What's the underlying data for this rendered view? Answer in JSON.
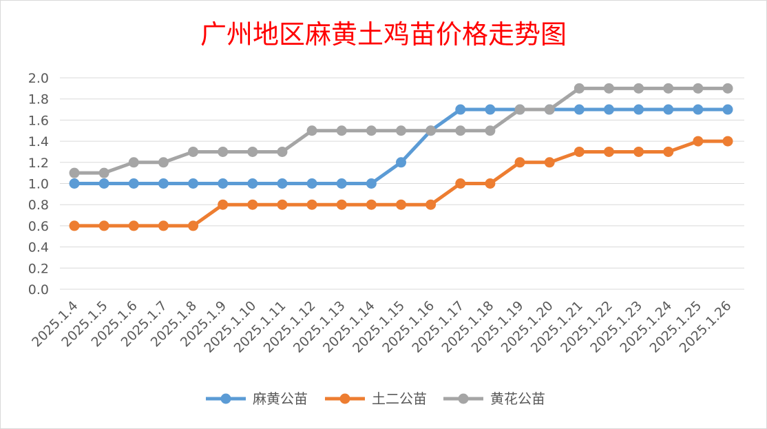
{
  "chart_data": {
    "type": "line",
    "title": "广州地区麻黄土鸡苗价格走势图",
    "xlabel": "",
    "ylabel": "",
    "ylim": [
      0,
      2.0
    ],
    "yticks": [
      "0.0",
      "0.2",
      "0.4",
      "0.6",
      "0.8",
      "1.0",
      "1.2",
      "1.4",
      "1.6",
      "1.8",
      "2.0"
    ],
    "grid": true,
    "legend_position": "bottom",
    "categories": [
      "2025.1.4",
      "2025.1.5",
      "2025.1.6",
      "2025.1.7",
      "2025.1.8",
      "2025.1.9",
      "2025.1.10",
      "2025.1.11",
      "2025.1.12",
      "2025.1.13",
      "2025.1.14",
      "2025.1.15",
      "2025.1.16",
      "2025.1.17",
      "2025.1.18",
      "2025.1.19",
      "2025.1.20",
      "2025.1.21",
      "2025.1.22",
      "2025.1.23",
      "2025.1.24",
      "2025.1.25",
      "2025.1.26"
    ],
    "series": [
      {
        "name": "麻黄公苗",
        "color": "#5b9bd5",
        "values": [
          1.0,
          1.0,
          1.0,
          1.0,
          1.0,
          1.0,
          1.0,
          1.0,
          1.0,
          1.0,
          1.0,
          1.2,
          1.5,
          1.7,
          1.7,
          1.7,
          1.7,
          1.7,
          1.7,
          1.7,
          1.7,
          1.7,
          1.7
        ]
      },
      {
        "name": "土二公苗",
        "color": "#ed7d31",
        "values": [
          0.6,
          0.6,
          0.6,
          0.6,
          0.6,
          0.8,
          0.8,
          0.8,
          0.8,
          0.8,
          0.8,
          0.8,
          0.8,
          1.0,
          1.0,
          1.2,
          1.2,
          1.3,
          1.3,
          1.3,
          1.3,
          1.4,
          1.4
        ]
      },
      {
        "name": "黄花公苗",
        "color": "#a5a5a5",
        "values": [
          1.1,
          1.1,
          1.2,
          1.2,
          1.3,
          1.3,
          1.3,
          1.3,
          1.5,
          1.5,
          1.5,
          1.5,
          1.5,
          1.5,
          1.5,
          1.7,
          1.7,
          1.9,
          1.9,
          1.9,
          1.9,
          1.9,
          1.9
        ]
      }
    ]
  }
}
